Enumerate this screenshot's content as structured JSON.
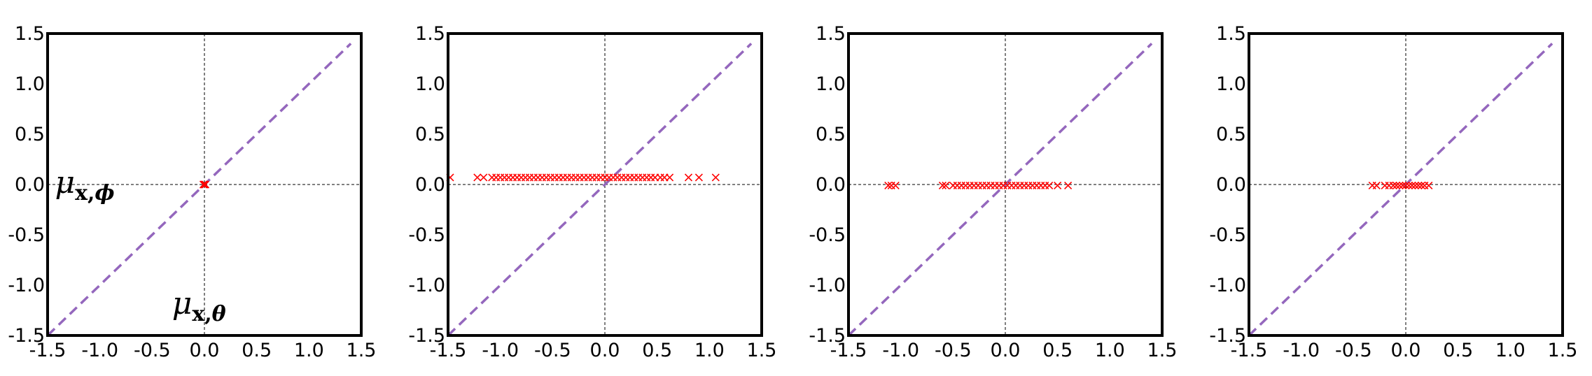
{
  "colors": {
    "identity_line": "#9467bd",
    "points": "#ff0000",
    "axes": "#000000",
    "zero_lines": "#000000"
  },
  "chart_data": [
    {
      "type": "scatter",
      "xlim": [
        -1.5,
        1.5
      ],
      "ylim": [
        -1.5,
        1.5
      ],
      "xticks": [
        "-1.5",
        "-1.0",
        "-0.5",
        "0.0",
        "0.5",
        "1.0",
        "1.5"
      ],
      "yticks": [
        "-1.5",
        "-1.0",
        "-0.5",
        "0.0",
        "0.5",
        "1.0",
        "1.5"
      ],
      "grid": false,
      "reference_line": "y = x, dashed",
      "zero_lines": true,
      "marker": "x",
      "annotations": [
        {
          "name": "y-axis-annotation",
          "symbol": "μ",
          "sub": "x,",
          "sub_italic": "ϕ",
          "at": [
            -1.43,
            0.0
          ]
        },
        {
          "name": "x-axis-annotation",
          "symbol": "μ",
          "sub": "x,",
          "sub_italic": "θ",
          "at": [
            -0.31,
            -1.2
          ]
        }
      ],
      "points": [
        {
          "x": 0.0,
          "y": 0.0
        },
        {
          "x": 0.01,
          "y": 0.0
        },
        {
          "x": -0.01,
          "y": 0.0
        }
      ]
    },
    {
      "type": "scatter",
      "xlim": [
        -1.5,
        1.5
      ],
      "ylim": [
        -1.5,
        1.5
      ],
      "xticks": [
        "-1.5",
        "-1.0",
        "-0.5",
        "0.0",
        "0.5",
        "1.0",
        "1.5"
      ],
      "yticks": [
        "-1.5",
        "-1.0",
        "-0.5",
        "0.0",
        "0.5",
        "1.0",
        "1.5"
      ],
      "grid": false,
      "reference_line": "y = x, dashed",
      "zero_lines": true,
      "marker": "x",
      "points": [
        {
          "x": -1.48,
          "y": 0.07
        },
        {
          "x": -1.22,
          "y": 0.07
        },
        {
          "x": -1.16,
          "y": 0.07
        },
        {
          "x": -1.08,
          "y": 0.07
        },
        {
          "x": -1.04,
          "y": 0.07
        },
        {
          "x": -1.0,
          "y": 0.07
        },
        {
          "x": -0.96,
          "y": 0.07
        },
        {
          "x": -0.92,
          "y": 0.07
        },
        {
          "x": -0.88,
          "y": 0.07
        },
        {
          "x": -0.84,
          "y": 0.07
        },
        {
          "x": -0.8,
          "y": 0.07
        },
        {
          "x": -0.76,
          "y": 0.07
        },
        {
          "x": -0.72,
          "y": 0.07
        },
        {
          "x": -0.68,
          "y": 0.07
        },
        {
          "x": -0.64,
          "y": 0.07
        },
        {
          "x": -0.6,
          "y": 0.07
        },
        {
          "x": -0.56,
          "y": 0.07
        },
        {
          "x": -0.52,
          "y": 0.07
        },
        {
          "x": -0.48,
          "y": 0.07
        },
        {
          "x": -0.44,
          "y": 0.07
        },
        {
          "x": -0.4,
          "y": 0.07
        },
        {
          "x": -0.36,
          "y": 0.07
        },
        {
          "x": -0.32,
          "y": 0.07
        },
        {
          "x": -0.28,
          "y": 0.07
        },
        {
          "x": -0.24,
          "y": 0.07
        },
        {
          "x": -0.2,
          "y": 0.07
        },
        {
          "x": -0.16,
          "y": 0.07
        },
        {
          "x": -0.12,
          "y": 0.07
        },
        {
          "x": -0.08,
          "y": 0.07
        },
        {
          "x": -0.04,
          "y": 0.07
        },
        {
          "x": 0.0,
          "y": 0.07
        },
        {
          "x": 0.04,
          "y": 0.07
        },
        {
          "x": 0.08,
          "y": 0.07
        },
        {
          "x": 0.12,
          "y": 0.07
        },
        {
          "x": 0.16,
          "y": 0.07
        },
        {
          "x": 0.2,
          "y": 0.07
        },
        {
          "x": 0.24,
          "y": 0.07
        },
        {
          "x": 0.28,
          "y": 0.07
        },
        {
          "x": 0.32,
          "y": 0.07
        },
        {
          "x": 0.36,
          "y": 0.07
        },
        {
          "x": 0.4,
          "y": 0.07
        },
        {
          "x": 0.44,
          "y": 0.07
        },
        {
          "x": 0.48,
          "y": 0.07
        },
        {
          "x": 0.53,
          "y": 0.07
        },
        {
          "x": 0.57,
          "y": 0.07
        },
        {
          "x": 0.62,
          "y": 0.07
        },
        {
          "x": 0.8,
          "y": 0.07
        },
        {
          "x": 0.9,
          "y": 0.07
        },
        {
          "x": 1.06,
          "y": 0.07
        }
      ]
    },
    {
      "type": "scatter",
      "xlim": [
        -1.5,
        1.5
      ],
      "ylim": [
        -1.5,
        1.5
      ],
      "xticks": [
        "-1.5",
        "-1.0",
        "-0.5",
        "0.0",
        "0.5",
        "1.0",
        "1.5"
      ],
      "yticks": [
        "-1.5",
        "-1.0",
        "-0.5",
        "0.0",
        "0.5",
        "1.0",
        "1.5"
      ],
      "grid": false,
      "reference_line": "y = x, dashed",
      "zero_lines": true,
      "marker": "x",
      "points": [
        {
          "x": -1.12,
          "y": -0.01
        },
        {
          "x": -1.09,
          "y": -0.01
        },
        {
          "x": -1.05,
          "y": -0.01
        },
        {
          "x": -0.6,
          "y": -0.01
        },
        {
          "x": -0.57,
          "y": -0.01
        },
        {
          "x": -0.5,
          "y": -0.01
        },
        {
          "x": -0.46,
          "y": -0.01
        },
        {
          "x": -0.42,
          "y": -0.01
        },
        {
          "x": -0.38,
          "y": -0.01
        },
        {
          "x": -0.34,
          "y": -0.01
        },
        {
          "x": -0.3,
          "y": -0.01
        },
        {
          "x": -0.26,
          "y": -0.01
        },
        {
          "x": -0.22,
          "y": -0.01
        },
        {
          "x": -0.18,
          "y": -0.01
        },
        {
          "x": -0.14,
          "y": -0.01
        },
        {
          "x": -0.1,
          "y": -0.01
        },
        {
          "x": -0.06,
          "y": -0.01
        },
        {
          "x": -0.02,
          "y": -0.01
        },
        {
          "x": 0.02,
          "y": -0.01
        },
        {
          "x": 0.06,
          "y": -0.01
        },
        {
          "x": 0.1,
          "y": -0.01
        },
        {
          "x": 0.14,
          "y": -0.01
        },
        {
          "x": 0.18,
          "y": -0.01
        },
        {
          "x": 0.22,
          "y": -0.01
        },
        {
          "x": 0.26,
          "y": -0.01
        },
        {
          "x": 0.3,
          "y": -0.01
        },
        {
          "x": 0.34,
          "y": -0.01
        },
        {
          "x": 0.38,
          "y": -0.01
        },
        {
          "x": 0.42,
          "y": -0.01
        },
        {
          "x": 0.5,
          "y": -0.01
        },
        {
          "x": 0.6,
          "y": -0.01
        }
      ]
    },
    {
      "type": "scatter",
      "xlim": [
        -1.5,
        1.5
      ],
      "ylim": [
        -1.5,
        1.5
      ],
      "xticks": [
        "-1.5",
        "-1.0",
        "-0.5",
        "0.0",
        "0.5",
        "1.0",
        "1.5"
      ],
      "yticks": [
        "-1.5",
        "-1.0",
        "-0.5",
        "0.0",
        "0.5",
        "1.0",
        "1.5"
      ],
      "grid": false,
      "reference_line": "y = x, dashed",
      "zero_lines": true,
      "marker": "x",
      "points": [
        {
          "x": -0.32,
          "y": -0.01
        },
        {
          "x": -0.28,
          "y": -0.01
        },
        {
          "x": -0.2,
          "y": -0.01
        },
        {
          "x": -0.16,
          "y": -0.01
        },
        {
          "x": -0.12,
          "y": -0.01
        },
        {
          "x": -0.09,
          "y": -0.01
        },
        {
          "x": -0.06,
          "y": -0.01
        },
        {
          "x": -0.03,
          "y": -0.01
        },
        {
          "x": 0.0,
          "y": -0.01
        },
        {
          "x": 0.03,
          "y": -0.01
        },
        {
          "x": 0.06,
          "y": -0.01
        },
        {
          "x": 0.09,
          "y": -0.01
        },
        {
          "x": 0.12,
          "y": -0.01
        },
        {
          "x": 0.15,
          "y": -0.01
        },
        {
          "x": 0.18,
          "y": -0.01
        },
        {
          "x": 0.22,
          "y": -0.01
        }
      ]
    }
  ]
}
